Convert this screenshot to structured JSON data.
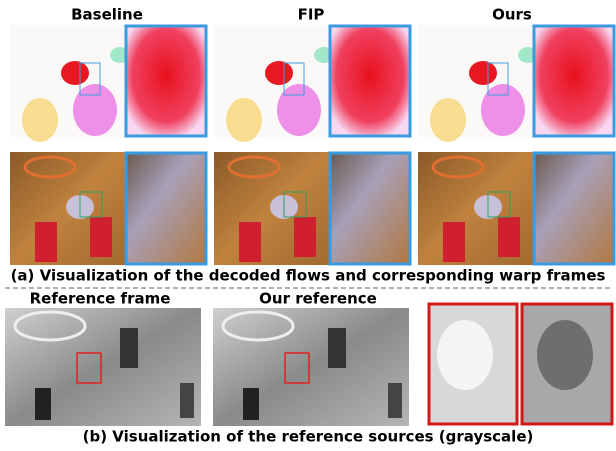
{
  "column_headers": [
    "Baseline",
    "FIP",
    "Ours"
  ],
  "caption_a": "(a) Visualization of the decoded flows and corresponding warp frames",
  "reference_labels": [
    "Reference frame",
    "Our reference"
  ],
  "caption_b": "(b) Visualization of the reference sources (grayscale)"
}
